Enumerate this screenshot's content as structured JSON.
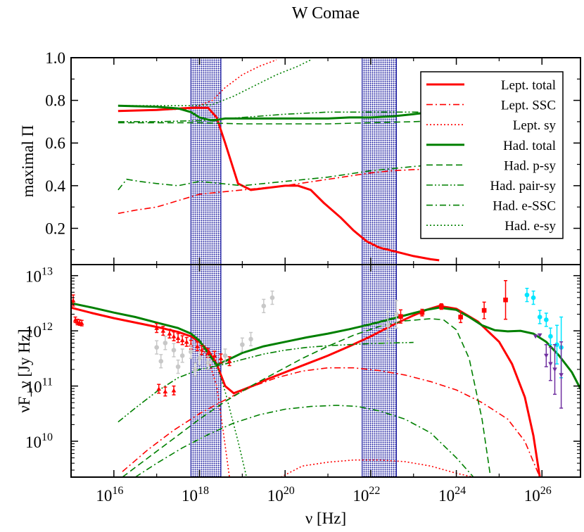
{
  "chart_data": [
    {
      "type": "line",
      "title": "W Comae",
      "xlabel": "",
      "ylabel": "maximal Π",
      "xlim_log10": [
        15.0,
        26.9
      ],
      "ylim": [
        0.03,
        1.0
      ],
      "yticks": [
        0.2,
        0.4,
        0.6,
        0.8,
        1.0
      ],
      "ytick_labels": [
        "0.2",
        "0.4",
        "0.6",
        "0.8",
        "1.0"
      ],
      "shaded_bands_log10_hz": [
        [
          17.8,
          18.5
        ],
        [
          21.8,
          22.6
        ]
      ],
      "legend": {
        "placement": "top-right",
        "entries": [
          {
            "label": "Lept. total",
            "color": "#ff0000",
            "style": "solid",
            "width": "thick"
          },
          {
            "label": "Lept. SSC",
            "color": "#ff0000",
            "style": "dashdot",
            "width": "thin"
          },
          {
            "label": "Lept. sy",
            "color": "#ff0000",
            "style": "dotted",
            "width": "thin"
          },
          {
            "label": "Had. total",
            "color": "#008000",
            "style": "solid",
            "width": "thick"
          },
          {
            "label": "Had. p-sy",
            "color": "#008000",
            "style": "dashed",
            "width": "thin"
          },
          {
            "label": "Had. pair-sy",
            "color": "#008000",
            "style": "dashdotdot",
            "width": "thin"
          },
          {
            "label": "Had. e-SSC",
            "color": "#008000",
            "style": "dashdot",
            "width": "thin"
          },
          {
            "label": "Had. e-sy",
            "color": "#008000",
            "style": "dotted",
            "width": "thin"
          }
        ]
      },
      "series": [
        {
          "key": "lept_total",
          "x_log10": [
            16.1,
            17.0,
            17.8,
            18.2,
            18.4,
            18.6,
            18.9,
            19.2,
            19.6,
            20.0,
            20.3,
            20.6,
            20.9,
            21.3,
            21.6,
            21.9,
            22.2,
            22.6,
            23.0,
            23.4,
            23.6
          ],
          "y": [
            0.75,
            0.755,
            0.765,
            0.765,
            0.72,
            0.6,
            0.41,
            0.38,
            0.39,
            0.4,
            0.4,
            0.38,
            0.32,
            0.25,
            0.19,
            0.14,
            0.11,
            0.09,
            0.07,
            0.055,
            0.05
          ]
        },
        {
          "key": "lept_ssc",
          "x_log10": [
            16.1,
            16.5,
            17.0,
            17.5,
            18.0,
            18.5,
            19.0,
            19.5,
            20.0,
            20.5,
            21.0,
            21.5,
            22.0,
            22.5,
            23.0,
            23.6
          ],
          "y": [
            0.27,
            0.285,
            0.3,
            0.33,
            0.36,
            0.37,
            0.38,
            0.39,
            0.4,
            0.415,
            0.43,
            0.445,
            0.46,
            0.47,
            0.475,
            0.48
          ]
        },
        {
          "key": "lept_sy",
          "x_log10": [
            16.1,
            17.0,
            17.8,
            18.3,
            18.6,
            19.0,
            19.4,
            19.8
          ],
          "y": [
            0.75,
            0.755,
            0.76,
            0.8,
            0.86,
            0.92,
            0.96,
            0.99
          ]
        },
        {
          "key": "had_total",
          "x_log10": [
            16.1,
            17.0,
            17.5,
            17.8,
            18.0,
            18.3,
            18.6,
            19.0,
            19.5,
            20.0,
            20.5,
            21.0,
            21.5,
            22.0,
            22.5,
            23.0,
            23.6
          ],
          "y": [
            0.775,
            0.77,
            0.762,
            0.745,
            0.72,
            0.705,
            0.715,
            0.715,
            0.715,
            0.715,
            0.715,
            0.715,
            0.72,
            0.72,
            0.725,
            0.735,
            0.75
          ]
        },
        {
          "key": "had_psy",
          "x_log10": [
            16.1,
            17.0,
            18.0,
            19.0,
            20.0,
            21.0,
            22.0,
            23.0,
            23.6
          ],
          "y": [
            0.695,
            0.695,
            0.695,
            0.69,
            0.69,
            0.69,
            0.695,
            0.7,
            0.705
          ]
        },
        {
          "key": "had_pairsy",
          "x_log10": [
            16.1,
            17.0,
            18.0,
            19.0,
            20.0,
            21.0,
            22.0,
            23.0,
            23.6
          ],
          "y": [
            0.7,
            0.7,
            0.705,
            0.72,
            0.735,
            0.745,
            0.745,
            0.745,
            0.745
          ]
        },
        {
          "key": "had_essc",
          "x_log10": [
            16.1,
            16.3,
            16.6,
            17.0,
            17.5,
            18.0,
            18.5,
            19.0,
            19.5,
            20.0,
            20.5,
            21.0,
            21.5,
            22.0,
            22.5,
            23.0,
            23.6
          ],
          "y": [
            0.38,
            0.43,
            0.42,
            0.41,
            0.4,
            0.42,
            0.41,
            0.4,
            0.41,
            0.42,
            0.43,
            0.44,
            0.455,
            0.47,
            0.48,
            0.49,
            0.5
          ]
        },
        {
          "key": "had_esy",
          "x_log10": [
            16.1,
            17.0,
            17.8,
            18.3,
            18.8,
            19.3,
            19.8,
            20.3,
            20.6
          ],
          "y": [
            0.775,
            0.775,
            0.775,
            0.78,
            0.82,
            0.87,
            0.92,
            0.96,
            0.99
          ]
        }
      ]
    },
    {
      "type": "line",
      "xlabel": "ν [Hz]",
      "ylabel": "νF_ν [Jy Hz]",
      "xlim_log10": [
        15.0,
        26.9
      ],
      "ylim_log10": [
        9.35,
        13.2
      ],
      "xticks_log10": [
        16,
        18,
        20,
        22,
        24,
        26
      ],
      "xtick_labels": [
        "10^16",
        "10^18",
        "10^20",
        "10^22",
        "10^24",
        "10^26"
      ],
      "yticks_log10": [
        10,
        11,
        12,
        13
      ],
      "ytick_labels": [
        "10^10",
        "10^11",
        "10^12",
        "10^13"
      ],
      "shaded_bands_log10_hz": [
        [
          17.8,
          18.5
        ],
        [
          21.8,
          22.6
        ]
      ],
      "series": [
        {
          "key": "lept_total",
          "x_log10": [
            15.0,
            15.5,
            16.0,
            16.5,
            17.0,
            17.5,
            17.8,
            18.0,
            18.2,
            18.4,
            18.6,
            18.8,
            19.0,
            19.3,
            19.6,
            20.0,
            20.5,
            21.0,
            21.5,
            22.0,
            22.5,
            23.0,
            23.3,
            23.6,
            24.0,
            24.5,
            25.0,
            25.3,
            25.6,
            25.8,
            25.95
          ],
          "y_log10": [
            12.42,
            12.32,
            12.23,
            12.15,
            12.07,
            11.98,
            11.9,
            11.8,
            11.65,
            11.4,
            11.0,
            10.87,
            10.93,
            11.02,
            11.13,
            11.25,
            11.4,
            11.55,
            11.72,
            11.9,
            12.1,
            12.28,
            12.38,
            12.45,
            12.4,
            12.17,
            11.8,
            11.4,
            10.8,
            10.1,
            9.35
          ]
        },
        {
          "key": "lept_ssc",
          "x_log10": [
            16.2,
            16.8,
            17.4,
            18.0,
            18.6,
            19.2,
            19.8,
            20.4,
            21.0,
            21.6,
            22.2,
            22.8,
            23.4,
            24.0,
            24.6,
            25.2,
            25.6,
            25.95
          ],
          "y_log10": [
            9.45,
            9.85,
            10.2,
            10.5,
            10.75,
            10.98,
            11.15,
            11.27,
            11.33,
            11.33,
            11.28,
            11.2,
            11.08,
            10.93,
            10.7,
            10.4,
            10.0,
            9.35
          ]
        },
        {
          "key": "lept_sy",
          "x_log10": [
            15.0,
            15.5,
            16.0,
            16.5,
            17.0,
            17.5,
            17.8,
            18.0,
            18.2,
            18.4,
            18.55,
            18.7
          ],
          "y_log10": [
            12.42,
            12.32,
            12.23,
            12.15,
            12.07,
            11.98,
            11.9,
            11.8,
            11.5,
            11.0,
            10.2,
            9.35
          ]
        },
        {
          "key": "lept_sy2",
          "x_log10": [
            19.9,
            20.4,
            21.0,
            21.6,
            22.2,
            22.8,
            23.4,
            24.0,
            24.4
          ],
          "y_log10": [
            9.35,
            9.55,
            9.62,
            9.66,
            9.66,
            9.63,
            9.55,
            9.42,
            9.35
          ]
        },
        {
          "key": "had_total",
          "x_log10": [
            15.0,
            15.5,
            16.0,
            16.5,
            17.0,
            17.5,
            17.8,
            18.0,
            18.2,
            18.4,
            18.6,
            19.0,
            19.5,
            20.0,
            20.5,
            21.0,
            21.5,
            22.0,
            22.5,
            23.0,
            23.3,
            23.6,
            24.0,
            24.3,
            24.6,
            24.9,
            25.2,
            25.5,
            25.8,
            26.1,
            26.4,
            26.7,
            26.9
          ],
          "y_log10": [
            12.5,
            12.42,
            12.33,
            12.25,
            12.15,
            12.05,
            11.95,
            11.82,
            11.6,
            11.38,
            11.45,
            11.6,
            11.72,
            11.8,
            11.88,
            11.95,
            12.03,
            12.12,
            12.22,
            12.32,
            12.38,
            12.42,
            12.38,
            12.25,
            12.1,
            12.01,
            11.99,
            12.0,
            11.95,
            11.8,
            11.55,
            11.25,
            10.95
          ]
        },
        {
          "key": "had_psy",
          "x_log10": [
            16.2,
            16.8,
            17.4,
            18.0,
            18.6,
            19.2,
            19.8,
            20.4,
            21.0,
            21.6,
            22.2,
            22.8,
            23.4,
            23.7,
            24.0,
            24.3,
            24.6,
            24.8
          ],
          "y_log10": [
            9.35,
            9.7,
            10.05,
            10.4,
            10.72,
            11.0,
            11.25,
            11.5,
            11.72,
            11.92,
            12.08,
            12.18,
            12.22,
            12.2,
            12.02,
            11.5,
            10.4,
            9.35
          ]
        },
        {
          "key": "had_pairsy",
          "x_log10": [
            16.1,
            16.5,
            17.0,
            17.5,
            18.0,
            18.5,
            19.0,
            19.5,
            20.0,
            20.5,
            21.0,
            21.5,
            22.0,
            22.5,
            23.0
          ],
          "y_log10": [
            10.35,
            10.6,
            10.9,
            11.15,
            11.3,
            11.38,
            11.48,
            11.58,
            11.65,
            11.7,
            11.73,
            11.75,
            11.77,
            11.78,
            11.79
          ]
        },
        {
          "key": "had_essc",
          "x_log10": [
            16.5,
            17.0,
            17.6,
            18.2,
            18.8,
            19.4,
            20.0,
            20.6,
            21.2,
            21.7,
            22.2,
            22.8,
            23.4,
            24.0,
            24.4
          ],
          "y_log10": [
            9.35,
            9.6,
            9.88,
            10.12,
            10.33,
            10.48,
            10.58,
            10.63,
            10.65,
            10.63,
            10.55,
            10.4,
            10.15,
            9.7,
            9.35
          ]
        },
        {
          "key": "had_esy",
          "x_log10": [
            15.0,
            15.5,
            16.0,
            16.5,
            17.0,
            17.5,
            17.8,
            18.0,
            18.2,
            18.4,
            18.6,
            18.9,
            19.1
          ],
          "y_log10": [
            12.5,
            12.42,
            12.33,
            12.25,
            12.15,
            12.05,
            11.95,
            11.82,
            11.6,
            11.38,
            10.9,
            10.0,
            9.35
          ]
        }
      ],
      "data_points": [
        {
          "group": "red-triangles",
          "color": "#ff0000",
          "marker": "triangle",
          "x_log10": [
            15.05,
            15.1,
            15.15,
            15.2,
            15.25,
            17.0,
            17.15,
            17.3,
            17.4,
            17.5,
            17.6,
            17.7,
            17.8,
            17.95,
            18.05,
            18.2,
            18.35,
            18.5,
            18.7,
            17.05,
            17.2,
            17.4
          ],
          "y_log10": [
            12.55,
            12.2,
            12.16,
            12.15,
            12.14,
            12.05,
            12.0,
            11.95,
            11.9,
            11.87,
            11.83,
            11.8,
            11.75,
            11.72,
            11.65,
            11.6,
            11.55,
            11.5,
            11.45,
            10.95,
            10.9,
            10.92
          ],
          "err_log10": [
            0.1,
            0.05,
            0.05,
            0.05,
            0.05,
            0.08,
            0.08,
            0.08,
            0.08,
            0.08,
            0.08,
            0.08,
            0.08,
            0.08,
            0.08,
            0.08,
            0.08,
            0.08,
            0.08,
            0.08,
            0.08,
            0.08
          ]
        },
        {
          "group": "grey-points",
          "color": "#c8c8c8",
          "marker": "circle",
          "x_log10": [
            17.0,
            17.2,
            17.4,
            17.6,
            17.8,
            18.0,
            17.1,
            17.5,
            17.9,
            18.2,
            18.6,
            19.0,
            19.2,
            19.5,
            19.7,
            22.4,
            22.6
          ],
          "y_log10": [
            11.7,
            11.78,
            11.65,
            11.55,
            11.62,
            11.5,
            11.45,
            11.35,
            11.3,
            11.42,
            11.55,
            11.75,
            11.85,
            12.45,
            12.6,
            12.1,
            12.3
          ],
          "err_log10": [
            0.12,
            0.12,
            0.12,
            0.12,
            0.12,
            0.12,
            0.12,
            0.12,
            0.12,
            0.12,
            0.12,
            0.12,
            0.12,
            0.12,
            0.12,
            0.25,
            0.25
          ]
        },
        {
          "group": "red-squares",
          "color": "#ff0000",
          "marker": "square",
          "x_log10": [
            22.7,
            23.2,
            23.65,
            24.1,
            24.65,
            25.15
          ],
          "y_log10": [
            12.26,
            12.33,
            12.44,
            12.25,
            12.37,
            12.56
          ],
          "err_log10": [
            0.12,
            0.06,
            0.05,
            0.1,
            0.15,
            0.35
          ]
        },
        {
          "group": "cyan-points",
          "color": "#00e5ff",
          "marker": "circle",
          "x_log10": [
            25.65,
            25.8,
            25.95,
            26.1,
            26.2,
            26.35,
            26.45
          ],
          "y_log10": [
            12.65,
            12.6,
            12.25,
            12.2,
            11.9,
            11.75,
            11.7
          ],
          "err_log10": [
            0.12,
            0.12,
            0.12,
            0.12,
            0.15,
            0.35,
            0.55
          ]
        },
        {
          "group": "purple-uplim",
          "color": "#7030a0",
          "marker": "down-triangle",
          "x_log10": [
            25.85,
            25.95,
            26.1,
            26.2,
            26.3,
            26.45
          ],
          "y_log10": [
            11.9,
            11.92,
            11.55,
            11.4,
            11.3,
            11.2
          ],
          "err_log10": [
            0.0,
            0.0,
            0.2,
            0.3,
            0.45,
            0.6
          ]
        }
      ]
    }
  ]
}
